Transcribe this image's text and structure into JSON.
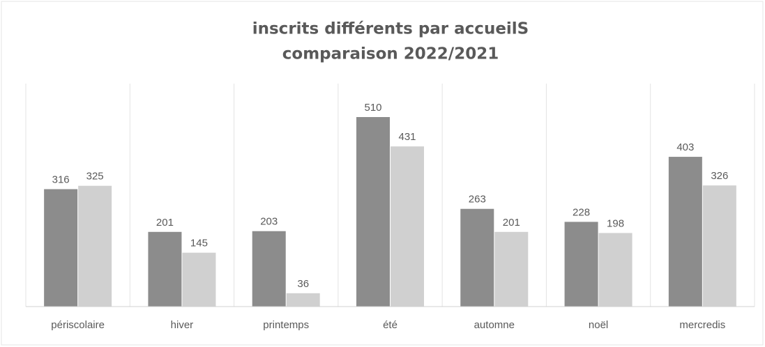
{
  "chart_data": {
    "type": "bar",
    "title": "inscrits différents par accueilS",
    "subtitle": "comparaison 2022/2021",
    "categories": [
      "périscolaire",
      "hiver",
      "printemps",
      "été",
      "automne",
      "noël",
      "mercredis"
    ],
    "series": [
      {
        "color": "#8c8c8c",
        "values": [
          316,
          201,
          203,
          510,
          263,
          228,
          403
        ]
      },
      {
        "color": "#d0d0d0",
        "values": [
          325,
          145,
          36,
          431,
          201,
          198,
          326
        ]
      }
    ],
    "ylim": [
      0,
      600
    ]
  }
}
